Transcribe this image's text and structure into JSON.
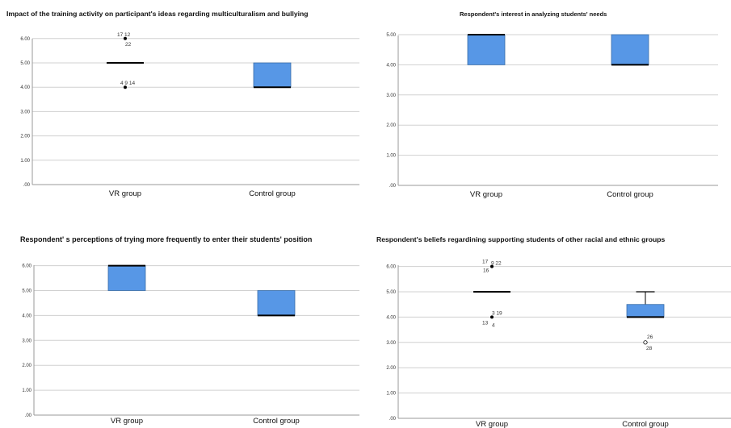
{
  "colors": {
    "box_fill": "#5797e6",
    "grid": "#d0d0d0",
    "median": "#000000"
  },
  "chart_data": [
    {
      "type": "box",
      "title": "Impact of the training activity on participant's ideas regarding multiculturalism and bullying",
      "yticks": [
        "6.00",
        "5.00",
        "4.00",
        "3.00",
        "2.00",
        "1.00",
        ".00"
      ],
      "ylim": [
        0,
        6.5
      ],
      "categories": [
        "VR group",
        "Control group"
      ],
      "boxes": [
        {
          "q1": 5,
          "median": 5,
          "q3": 5,
          "whisker_low": 5,
          "whisker_high": 5,
          "outliers": [
            {
              "y": 6,
              "labels": [
                "17 12",
                "22"
              ],
              "marker": "filled"
            },
            {
              "y": 4,
              "labels": [
                "4 9 14"
              ],
              "marker": "filled"
            }
          ]
        },
        {
          "q1": 4,
          "median": 4,
          "q3": 5,
          "whisker_low": 4,
          "whisker_high": 5,
          "outliers": []
        }
      ]
    },
    {
      "type": "box",
      "title": "Respondent's interest in analyzing students' needs",
      "yticks": [
        "5.00",
        "4.00",
        "3.00",
        "2.00",
        "1.00",
        ".00"
      ],
      "ylim": [
        0,
        5.5
      ],
      "categories": [
        "VR group",
        "Control group"
      ],
      "boxes": [
        {
          "q1": 4,
          "median": 5,
          "q3": 5,
          "whisker_low": 4,
          "whisker_high": 5,
          "outliers": []
        },
        {
          "q1": 4,
          "median": 4,
          "q3": 5,
          "whisker_low": 4,
          "whisker_high": 5,
          "outliers": []
        }
      ]
    },
    {
      "type": "box",
      "title": "Respondent' s perceptions of trying more frequently to enter their students' position",
      "yticks": [
        "6.00",
        "5.00",
        "4.00",
        "3.00",
        "2.00",
        "1.00",
        ".00"
      ],
      "ylim": [
        0,
        6.5
      ],
      "categories": [
        "VR group",
        "Control group"
      ],
      "boxes": [
        {
          "q1": 5,
          "median": 6,
          "q3": 6,
          "whisker_low": 5,
          "whisker_high": 6,
          "outliers": []
        },
        {
          "q1": 4,
          "median": 4,
          "q3": 5,
          "whisker_low": 4,
          "whisker_high": 5,
          "outliers": []
        }
      ]
    },
    {
      "type": "box",
      "title": "Respondent's beliefs regardining supporting students of other racial and ethnic groups",
      "yticks": [
        "6.00",
        "5.00",
        "4.00",
        "3.00",
        "2.00",
        "1.00",
        ".00"
      ],
      "ylim": [
        0,
        6.5
      ],
      "categories": [
        "VR group",
        "Control group"
      ],
      "boxes": [
        {
          "q1": 5,
          "median": 5,
          "q3": 5,
          "whisker_low": 5,
          "whisker_high": 5,
          "outliers": [
            {
              "y": 6,
              "labels": [
                "17",
                "9 22",
                "16"
              ],
              "marker": "filled"
            },
            {
              "y": 4,
              "labels": [
                "3 19",
                "13",
                "4"
              ],
              "marker": "filled"
            }
          ]
        },
        {
          "q1": 4,
          "median": 4,
          "q3": 4.5,
          "whisker_low": 4,
          "whisker_high": 5,
          "outliers": [
            {
              "y": 3,
              "labels": [
                "26",
                "28"
              ],
              "marker": "open"
            }
          ]
        }
      ]
    }
  ]
}
